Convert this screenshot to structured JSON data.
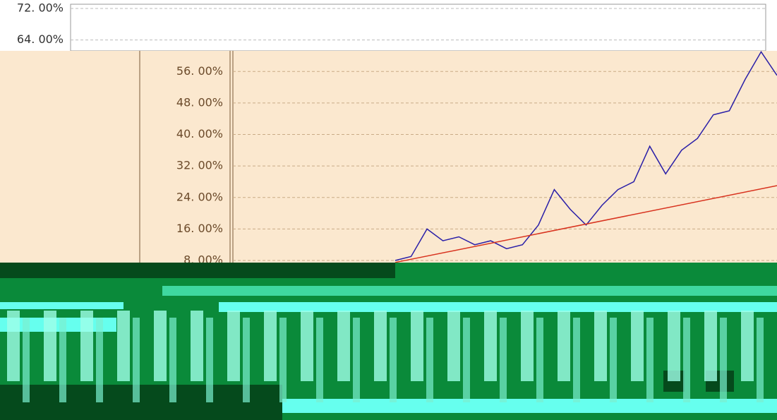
{
  "chart_data": {
    "type": "line",
    "ylim": [
      0,
      74
    ],
    "yticks": [
      {
        "value": 72,
        "label": "72. 00%"
      },
      {
        "value": 64,
        "label": "64. 00%"
      },
      {
        "value": 56,
        "label": "56. 00%"
      },
      {
        "value": 48,
        "label": "48. 00%"
      },
      {
        "value": 40,
        "label": "40. 00%"
      },
      {
        "value": 32,
        "label": "32. 00%"
      },
      {
        "value": 24,
        "label": "24. 00%"
      },
      {
        "value": 16,
        "label": "16. 00%"
      },
      {
        "value": 8,
        "label": "8. 00%"
      }
    ],
    "grid": true,
    "series": [
      {
        "color": "#2a1fa8",
        "values": [
          8,
          9,
          16,
          13,
          14,
          12,
          13,
          11,
          12,
          17,
          26,
          21,
          17,
          22,
          26,
          28,
          37,
          30,
          36,
          39,
          45,
          46,
          54,
          61,
          55
        ]
      },
      {
        "color": "#d8321e",
        "values": [
          7.5,
          27
        ]
      }
    ]
  }
}
